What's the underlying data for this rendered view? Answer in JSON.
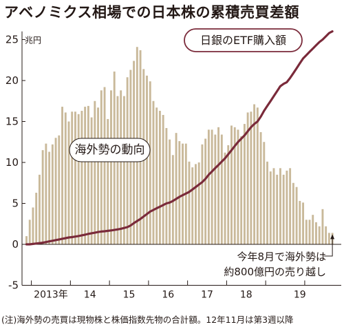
{
  "title": "アベノミクス相場での日本株の累積売買差額",
  "note": "(注)海外勢の売買は現物株と株価指数先物の合計額。12年11月は第3週以降",
  "chart_data": {
    "type": "bar",
    "title": "アベノミクス相場での日本株の累積売買差額",
    "ylabel": "",
    "unit_label": "兆円",
    "ylim": [
      -5,
      26
    ],
    "yticks": [
      -5,
      0,
      5,
      10,
      15,
      20,
      25
    ],
    "ytick_labels": [
      "-5",
      "0",
      "5",
      "10",
      "15",
      "20",
      "25"
    ],
    "grid": false,
    "x_labels": [
      "2013年",
      "14",
      "15",
      "16",
      "17",
      "18",
      "19"
    ],
    "bar_color": "#c9b99a",
    "line_color": "#7a2a3a",
    "series": [
      {
        "name": "海外勢の動向",
        "type": "bar",
        "values": [
          1,
          3,
          4.5,
          6.3,
          8.5,
          11.5,
          12.3,
          11.3,
          12.2,
          13,
          13.3,
          16.8,
          16.1,
          15,
          16.2,
          16.2,
          15.9,
          16.3,
          16.8,
          16.9,
          15.5,
          17.5,
          16.7,
          18.8,
          19.2,
          15.3,
          18.8,
          21.1,
          18.1,
          18.8,
          18.1,
          20.4,
          21.3,
          22.4,
          24.1,
          23.7,
          21.4,
          20.6,
          19.9,
          17.5,
          16.7,
          16.3,
          15.8,
          14.2,
          12.8,
          10.9,
          13.6,
          12.6,
          12.3,
          12.3,
          10.1,
          9.4,
          9.8,
          10,
          12.2,
          12.9,
          14,
          14,
          13.4,
          14.3,
          13.4,
          11.2,
          12.1,
          14.5,
          14.3,
          14,
          13.2,
          14.7,
          16.1,
          16.2,
          17.1,
          16.7,
          13.7,
          12.5,
          10.1,
          8.9,
          9.3,
          8.5,
          9.3,
          8.5,
          9,
          9.3,
          7.5,
          7,
          5.3,
          5.1,
          3,
          3,
          3.6,
          2.7,
          2.2,
          4.3,
          2.2,
          1.4,
          1.4
        ],
        "first_highlight_index": 1
      },
      {
        "name": "日銀のETF購入額",
        "type": "line",
        "values": [
          0,
          0,
          0.05,
          0.1,
          0.15,
          0.2,
          0.28,
          0.36,
          0.44,
          0.52,
          0.6,
          0.68,
          0.76,
          0.84,
          0.88,
          0.95,
          1.02,
          1.1,
          1.18,
          1.28,
          1.35,
          1.42,
          1.5,
          1.56,
          1.6,
          1.65,
          1.7,
          1.76,
          1.82,
          1.9,
          2.0,
          2.1,
          2.3,
          2.6,
          2.85,
          3.1,
          3.4,
          3.7,
          4.0,
          4.2,
          4.4,
          4.6,
          4.8,
          5.0,
          5.1,
          5.3,
          5.55,
          5.8,
          6.0,
          6.2,
          6.4,
          6.7,
          7.0,
          7.3,
          7.6,
          8.0,
          8.5,
          8.9,
          9.3,
          9.7,
          10.1,
          10.5,
          11.0,
          11.5,
          12.0,
          12.5,
          12.9,
          13.3,
          13.8,
          14.3,
          14.7,
          15.0,
          15.6,
          16.3,
          16.9,
          17.5,
          18.1,
          18.7,
          19.3,
          19.6,
          19.8,
          20.3,
          20.9,
          21.5,
          22.1,
          22.7,
          23.1,
          23.5,
          23.9,
          24.3,
          24.7,
          25.0,
          25.4,
          25.8,
          26.0
        ]
      }
    ],
    "legend": [
      {
        "text": "海外勢の動向",
        "placement": "center-left"
      },
      {
        "text": "日銀のETF購入額",
        "placement": "top-center"
      }
    ],
    "annotation": {
      "text_line1": "今年8月で海外勢は",
      "text_line2": "約800億円の売り越し",
      "placement": "bottom-right"
    }
  }
}
